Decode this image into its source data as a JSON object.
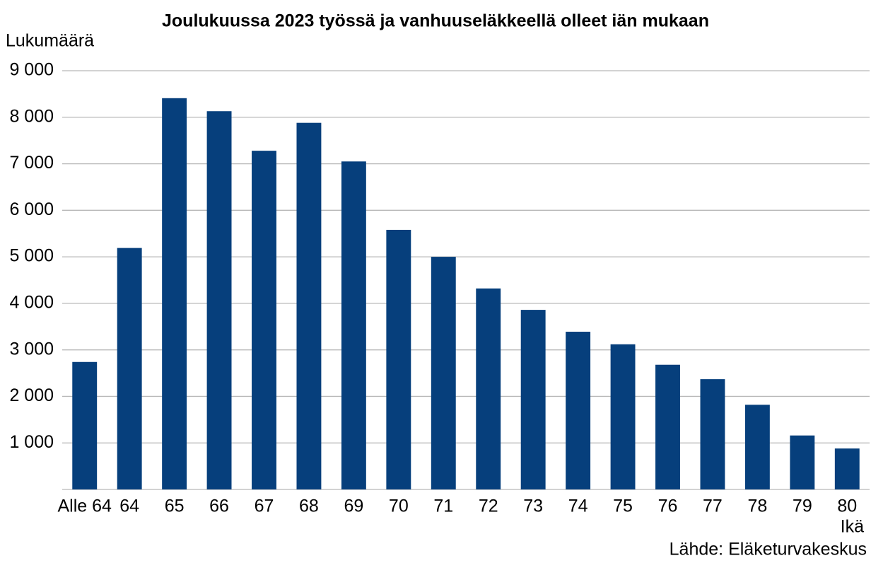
{
  "chart_data": {
    "type": "bar",
    "title": "Joulukuussa 2023 työssä ja vanhuuseläkkeellä olleet iän mukaan",
    "y_label": "Lukumäärä",
    "x_label": "Ikä",
    "source": "Lähde: Eläketurvakeskus",
    "categories": [
      "Alle 64",
      "64",
      "65",
      "66",
      "67",
      "68",
      "69",
      "70",
      "71",
      "72",
      "73",
      "74",
      "75",
      "76",
      "77",
      "78",
      "79",
      "80"
    ],
    "values": [
      2740,
      5190,
      8410,
      8130,
      7280,
      7880,
      7050,
      5580,
      5000,
      4320,
      3860,
      3390,
      3120,
      2680,
      2370,
      1820,
      1160,
      880
    ],
    "color": "#063f7c",
    "ylim": [
      0,
      9000
    ],
    "yticks": [
      {
        "value": 1000,
        "label": "1 000"
      },
      {
        "value": 2000,
        "label": "2 000"
      },
      {
        "value": 3000,
        "label": "3 000"
      },
      {
        "value": 4000,
        "label": "4 000"
      },
      {
        "value": 5000,
        "label": "5 000"
      },
      {
        "value": 6000,
        "label": "6 000"
      },
      {
        "value": 7000,
        "label": "7 000"
      },
      {
        "value": 8000,
        "label": "8 000"
      },
      {
        "value": 9000,
        "label": "9 000"
      }
    ],
    "grid": true
  }
}
